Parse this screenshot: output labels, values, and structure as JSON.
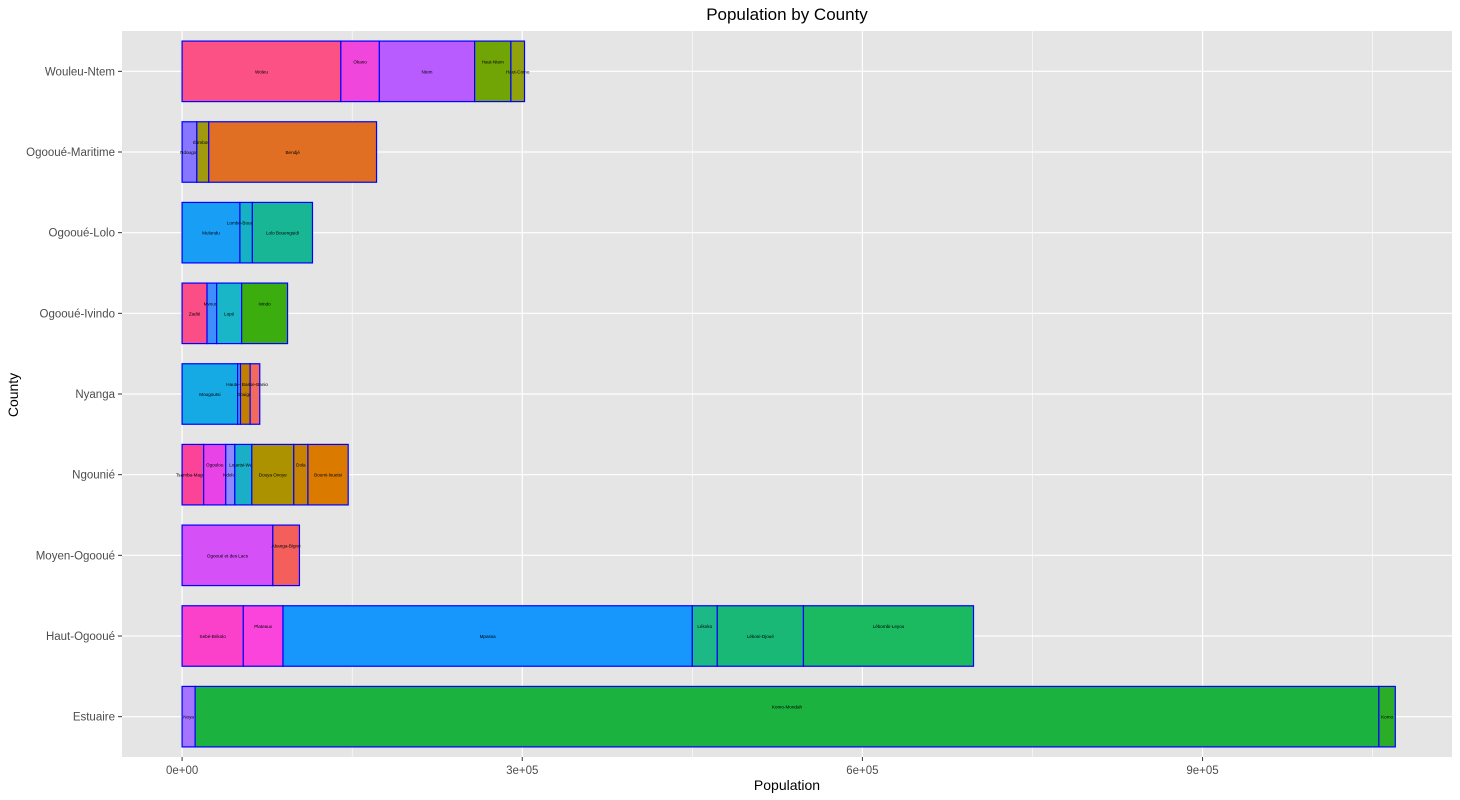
{
  "chart_data": {
    "type": "bar",
    "orientation": "horizontal",
    "stacked": true,
    "title": "Population by County",
    "xlabel": "Population",
    "ylabel": "County",
    "xlim": [
      -53000,
      1120000
    ],
    "x_ticks": [
      {
        "value": 0,
        "label": "0e+00"
      },
      {
        "value": 300000,
        "label": "3e+05"
      },
      {
        "value": 600000,
        "label": "6e+05"
      },
      {
        "value": 900000,
        "label": "9e+05"
      }
    ],
    "grid": true,
    "legend": "none",
    "colors": {
      "panel_background": "#e5e5e5",
      "grid_major": "#ffffff",
      "bar_outline": "#0000ff"
    },
    "categories": [
      "Estuaire",
      "Haut-Ogooué",
      "Moyen-Ogooué",
      "Ngounié",
      "Nyanga",
      "Ogooué-Ivindo",
      "Ogooué-Lolo",
      "Ogooué-Maritime",
      "Wouleu-Ntem"
    ],
    "stacks": [
      {
        "county": "Estuaire",
        "segments": [
          {
            "name": "Noya",
            "value": 11500,
            "color": "#a575ff"
          },
          {
            "name": "Komo-Mondah",
            "value": 1044000,
            "color": "#1bb23f"
          },
          {
            "name": "Komo",
            "value": 14500,
            "color": "#2cad27"
          }
        ]
      },
      {
        "county": "Haut-Ogooué",
        "segments": [
          {
            "name": "Sebé-Brikolo",
            "value": 54000,
            "color": "#fb41c9"
          },
          {
            "name": "Plateaux",
            "value": 35000,
            "color": "#fb44db"
          },
          {
            "name": "Mpassa",
            "value": 361000,
            "color": "#1796fc"
          },
          {
            "name": "Lékoko",
            "value": 22000,
            "color": "#1cb885"
          },
          {
            "name": "Lékoni-Djoué",
            "value": 76000,
            "color": "#19b877"
          },
          {
            "name": "Lébombi-Leyou",
            "value": 150000,
            "color": "#1bba60"
          }
        ]
      },
      {
        "county": "Moyen-Ogooué",
        "segments": [
          {
            "name": "Ogooué et des Lacs",
            "value": 80000,
            "color": "#d550f6"
          },
          {
            "name": "Abanga-Bigné",
            "value": 23500,
            "color": "#f45e5b"
          }
        ]
      },
      {
        "county": "Ngounié",
        "segments": [
          {
            "name": "Tsamba-Magotsi",
            "value": 19000,
            "color": "#fb4497"
          },
          {
            "name": "Ogoulou",
            "value": 19500,
            "color": "#e743e7"
          },
          {
            "name": "Ndolou",
            "value": 8000,
            "color": "#8f88ff"
          },
          {
            "name": "Louetsi-Wano",
            "value": 15000,
            "color": "#1aafc6"
          },
          {
            "name": "Douya Onoye",
            "value": 37000,
            "color": "#ad9200"
          },
          {
            "name": "Dola",
            "value": 12500,
            "color": "#c98300"
          },
          {
            "name": "Boumi-louetsi",
            "value": 35500,
            "color": "#da7b00"
          }
        ]
      },
      {
        "county": "Nyanga",
        "segments": [
          {
            "name": "Mougoutsi",
            "value": 49000,
            "color": "#16aae4"
          },
          {
            "name": "Haute-Banio",
            "value": 2500,
            "color": "#4c9dfc"
          },
          {
            "name": "Douigny",
            "value": 8500,
            "color": "#c37f00"
          },
          {
            "name": "Basse-Banio",
            "value": 8500,
            "color": "#f16a5b"
          }
        ]
      },
      {
        "county": "Ogooué-Ivindo",
        "segments": [
          {
            "name": "Zadié",
            "value": 22000,
            "color": "#fb4d86"
          },
          {
            "name": "Mvoung",
            "value": 8500,
            "color": "#3f8eff"
          },
          {
            "name": "Lopé",
            "value": 22000,
            "color": "#19b6c7"
          },
          {
            "name": "Ivindo",
            "value": 40500,
            "color": "#3bad0f"
          }
        ]
      },
      {
        "county": "Ogooué-Lolo",
        "segments": [
          {
            "name": "Mulundu",
            "value": 51000,
            "color": "#199ef5"
          },
          {
            "name": "Lombo-Bouenguidi",
            "value": 11000,
            "color": "#16b1c2"
          },
          {
            "name": "Lolo Bouenguidi",
            "value": 53000,
            "color": "#19b696"
          }
        ]
      },
      {
        "county": "Ogooué-Maritime",
        "segments": [
          {
            "name": "Ndougou",
            "value": 13000,
            "color": "#8776ff"
          },
          {
            "name": "Étimboué",
            "value": 10500,
            "color": "#a09a0c"
          },
          {
            "name": "Bendjé",
            "value": 148000,
            "color": "#e06f24"
          }
        ]
      },
      {
        "county": "Wouleu-Ntem",
        "segments": [
          {
            "name": "Woleu",
            "value": 140000,
            "color": "#fb5184"
          },
          {
            "name": "Okano",
            "value": 34000,
            "color": "#f046dc"
          },
          {
            "name": "Ntem",
            "value": 84000,
            "color": "#b85cff"
          },
          {
            "name": "Haut-Ntem",
            "value": 32000,
            "color": "#70a505"
          },
          {
            "name": "Haut-Como",
            "value": 12000,
            "color": "#91a20c"
          }
        ]
      }
    ]
  }
}
